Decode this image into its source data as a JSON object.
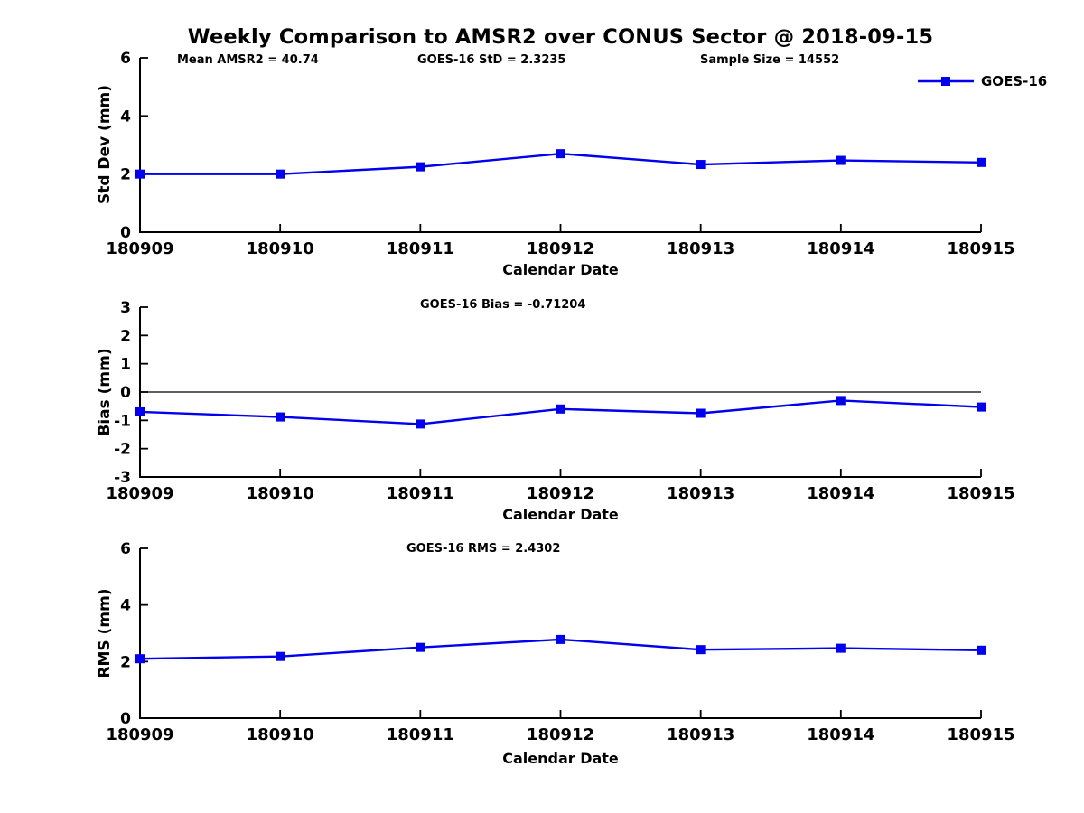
{
  "title": "Weekly Comparison to AMSR2 over CONUS Sector @ 2018-09-15",
  "legend": {
    "label": "GOES-16"
  },
  "colors": {
    "series": "#0000ee",
    "axis": "#000000",
    "zero_line": "#000000",
    "background": "#ffffff"
  },
  "chart_data": [
    {
      "type": "line",
      "name": "std-dev",
      "categories": [
        "180909",
        "180910",
        "180911",
        "180912",
        "180913",
        "180914",
        "180915"
      ],
      "series": [
        {
          "name": "GOES-16",
          "values": [
            2.0,
            2.0,
            2.25,
            2.7,
            2.33,
            2.47,
            2.4
          ]
        }
      ],
      "ylabel": "Std Dev (mm)",
      "xlabel": "Calendar Date",
      "ylim": [
        0,
        6
      ],
      "yticks": [
        0,
        2,
        4,
        6
      ],
      "grid": false,
      "legend_position": "top-right-outside",
      "annotations": [
        "Mean AMSR2 = 40.74",
        "GOES-16 StD = 2.3235",
        "Sample Size = 14552"
      ]
    },
    {
      "type": "line",
      "name": "bias",
      "categories": [
        "180909",
        "180910",
        "180911",
        "180912",
        "180913",
        "180914",
        "180915"
      ],
      "series": [
        {
          "name": "GOES-16",
          "values": [
            -0.7,
            -0.88,
            -1.13,
            -0.6,
            -0.75,
            -0.3,
            -0.53
          ]
        }
      ],
      "ylabel": "Bias (mm)",
      "xlabel": "Calendar Date",
      "ylim": [
        -3,
        3
      ],
      "yticks": [
        -3,
        -2,
        -1,
        0,
        1,
        2,
        3
      ],
      "grid": false,
      "zero_line": true,
      "annotations": [
        "GOES-16 Bias  = -0.71204"
      ]
    },
    {
      "type": "line",
      "name": "rms",
      "categories": [
        "180909",
        "180910",
        "180911",
        "180912",
        "180913",
        "180914",
        "180915"
      ],
      "series": [
        {
          "name": "GOES-16",
          "values": [
            2.1,
            2.18,
            2.5,
            2.78,
            2.42,
            2.47,
            2.4
          ]
        }
      ],
      "ylabel": "RMS (mm)",
      "xlabel": "Calendar Date",
      "ylim": [
        0,
        6
      ],
      "yticks": [
        0,
        2,
        4,
        6
      ],
      "grid": false,
      "annotations": [
        "GOES-16 RMS = 2.4302"
      ]
    }
  ]
}
